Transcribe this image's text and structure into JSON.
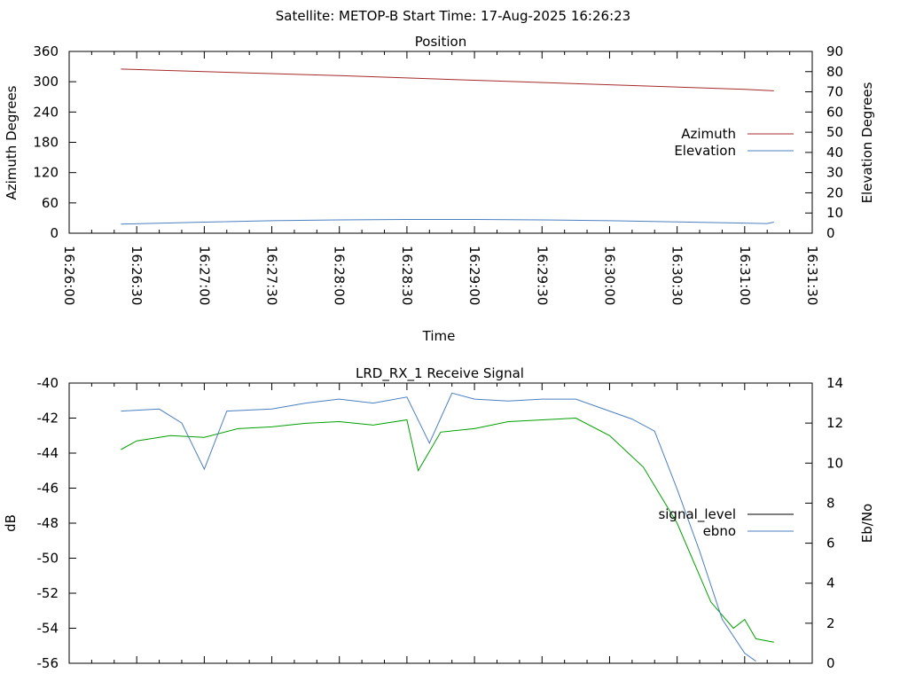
{
  "header": {
    "title": "Satellite: METOP-B    Start Time: 17-Aug-2025 16:26:23"
  },
  "colors": {
    "azimuth": "#a52a2a",
    "elevation": "#4a7fc0",
    "signal_level": "#000000",
    "ebno": "#4a7fc0",
    "signal_trace_green": "#00a000",
    "signal_trace_red": "#a52a2a",
    "axis": "#000000"
  },
  "chart_data": [
    {
      "type": "line",
      "title": "Position",
      "xlabel": "Time",
      "ylabel": "Azimuth Degrees",
      "y2label": "Elevation Degrees",
      "x_ticks": [
        "16:26:00",
        "16:26:30",
        "16:27:00",
        "16:27:30",
        "16:28:00",
        "16:28:30",
        "16:29:00",
        "16:29:30",
        "16:30:00",
        "16:30:30",
        "16:31:00",
        "16:31:30"
      ],
      "ylim": [
        0,
        360
      ],
      "y_ticks": [
        "0",
        "60",
        "120",
        "180",
        "240",
        "300",
        "360"
      ],
      "y2lim": [
        0,
        90
      ],
      "y2_ticks": [
        "0",
        "10",
        "20",
        "30",
        "40",
        "50",
        "60",
        "70",
        "80",
        "90"
      ],
      "legend_position": "right",
      "grid": false,
      "series": [
        {
          "name": "Azimuth",
          "axis": "y1",
          "x": [
            "16:26:23",
            "16:27:00",
            "16:28:00",
            "16:29:00",
            "16:30:00",
            "16:31:00",
            "16:31:13"
          ],
          "values": [
            325,
            320,
            312,
            303,
            294,
            285,
            282
          ]
        },
        {
          "name": "Elevation",
          "axis": "y2",
          "x": [
            "16:26:23",
            "16:27:00",
            "16:27:30",
            "16:28:00",
            "16:28:30",
            "16:29:00",
            "16:29:30",
            "16:30:00",
            "16:30:30",
            "16:31:00",
            "16:31:10",
            "16:31:13"
          ],
          "values": [
            4.5,
            5.5,
            6.2,
            6.6,
            6.8,
            6.8,
            6.6,
            6.2,
            5.6,
            5.0,
            4.8,
            5.5
          ]
        }
      ]
    },
    {
      "type": "line",
      "title": "LRD_RX_1 Receive Signal",
      "xlabel": "",
      "ylabel": "dB",
      "y2label": "Eb/No",
      "ylim": [
        -56,
        -40
      ],
      "y_ticks": [
        "-40",
        "-42",
        "-44",
        "-46",
        "-48",
        "-50",
        "-52",
        "-54",
        "-56"
      ],
      "y2lim": [
        0,
        14
      ],
      "y2_ticks": [
        "0",
        "2",
        "4",
        "6",
        "8",
        "10",
        "12",
        "14"
      ],
      "legend_position": "right",
      "grid": false,
      "series": [
        {
          "name": "signal_level",
          "axis": "y1",
          "x": [
            "16:26:23",
            "16:26:30",
            "16:26:45",
            "16:27:00",
            "16:27:15",
            "16:27:30",
            "16:27:45",
            "16:28:00",
            "16:28:15",
            "16:28:30",
            "16:28:35",
            "16:28:45",
            "16:29:00",
            "16:29:15",
            "16:29:30",
            "16:29:45",
            "16:30:00",
            "16:30:15",
            "16:30:30",
            "16:30:45",
            "16:30:55",
            "16:31:00",
            "16:31:05",
            "16:31:13"
          ],
          "values": [
            -43.8,
            -43.3,
            -43.0,
            -43.1,
            -42.6,
            -42.5,
            -42.3,
            -42.2,
            -42.4,
            -42.1,
            -45.0,
            -42.8,
            -42.6,
            -42.2,
            -42.1,
            -42.0,
            -43.0,
            -44.8,
            -48.0,
            -52.5,
            -54.0,
            -53.5,
            -54.6,
            -54.8
          ]
        },
        {
          "name": "ebno",
          "axis": "y2",
          "x": [
            "16:26:23",
            "16:26:40",
            "16:26:50",
            "16:27:00",
            "16:27:10",
            "16:27:30",
            "16:27:45",
            "16:28:00",
            "16:28:15",
            "16:28:30",
            "16:28:40",
            "16:28:50",
            "16:29:00",
            "16:29:15",
            "16:29:30",
            "16:29:45",
            "16:30:00",
            "16:30:10",
            "16:30:20",
            "16:30:30",
            "16:30:40",
            "16:30:50",
            "16:31:00",
            "16:31:05"
          ],
          "values": [
            12.6,
            12.7,
            12.0,
            9.7,
            12.6,
            12.7,
            13.0,
            13.2,
            13.0,
            13.3,
            11.0,
            13.5,
            13.2,
            13.1,
            13.2,
            13.2,
            12.6,
            12.2,
            11.6,
            8.7,
            5.6,
            2.2,
            0.5,
            0.1
          ]
        }
      ]
    }
  ]
}
